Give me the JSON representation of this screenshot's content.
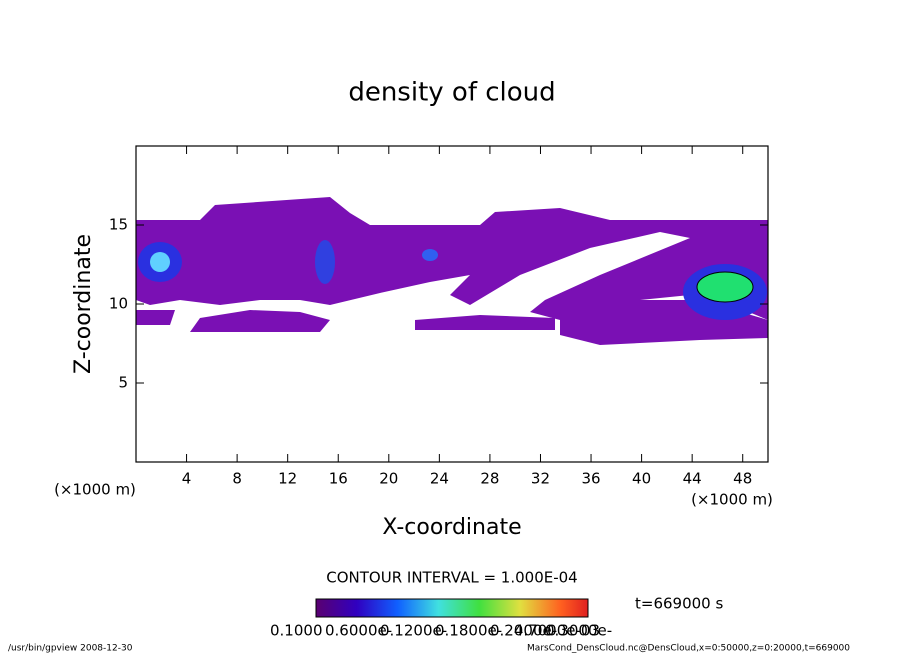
{
  "chart_data": {
    "type": "contour",
    "title": "density of cloud",
    "x_label": "X-coordinate",
    "y_label": "Z-coordinate",
    "x_unit": "(×1000 m)",
    "y_unit": "(×1000 m)",
    "xlim": [
      0,
      50
    ],
    "xticks": [
      4,
      8,
      12,
      16,
      20,
      24,
      28,
      32,
      36,
      40,
      44,
      48
    ],
    "ylim": [
      0,
      20
    ],
    "yticks": [
      5,
      10,
      15
    ],
    "contour_interval": "CONTOUR INTERVAL = 1.000E-04",
    "time_label": "t=669000 s",
    "colorbar_labels": [
      "0.1000",
      "0.6000e-",
      "0.1200e-",
      "0.1800e-",
      "0.2400e-",
      "0.3000e-",
      "0.7000e-03"
    ],
    "footer_left": "/usr/bin/gpview   2008-12-30",
    "footer_right": "MarsCond_DensCloud.nc@DensCloud,x=0:50000,z=0:20000,t=669000"
  }
}
